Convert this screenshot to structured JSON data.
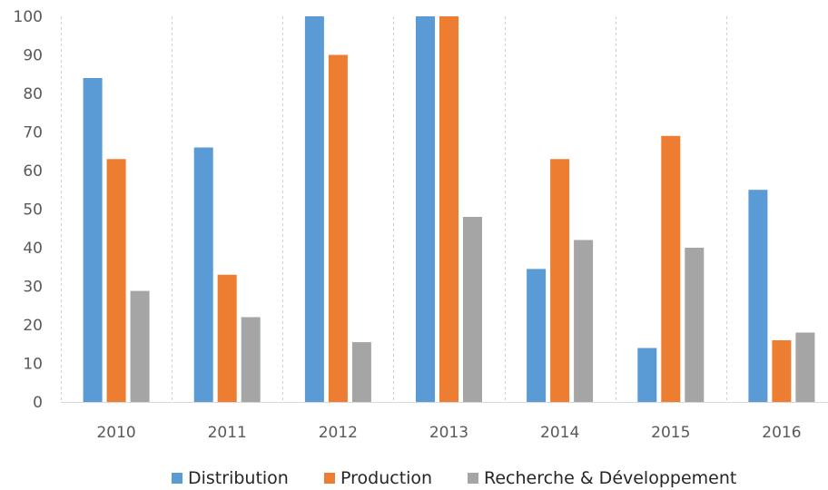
{
  "chart_data": {
    "type": "bar",
    "title": "",
    "xlabel": "",
    "ylabel": "",
    "categories": [
      "2010",
      "2011",
      "2012",
      "2013",
      "2014",
      "2015",
      "2016"
    ],
    "ylim": [
      0,
      100
    ],
    "yticks": [
      0,
      10,
      20,
      30,
      40,
      50,
      60,
      70,
      80,
      90,
      100
    ],
    "grid": {
      "x": true,
      "y": false,
      "style": "dashed"
    },
    "legend_position": "bottom",
    "series": [
      {
        "name": "Distribution",
        "color": "#5B9BD5",
        "values": [
          84,
          66,
          100,
          100,
          34.5,
          14,
          55
        ]
      },
      {
        "name": "Production",
        "color": "#ED7D31",
        "values": [
          63,
          33,
          90,
          100,
          63,
          69,
          16
        ]
      },
      {
        "name": "Recherche & Développement",
        "color": "#A5A5A5",
        "values": [
          28.8,
          22,
          15.5,
          48,
          42,
          40,
          18
        ]
      }
    ]
  }
}
